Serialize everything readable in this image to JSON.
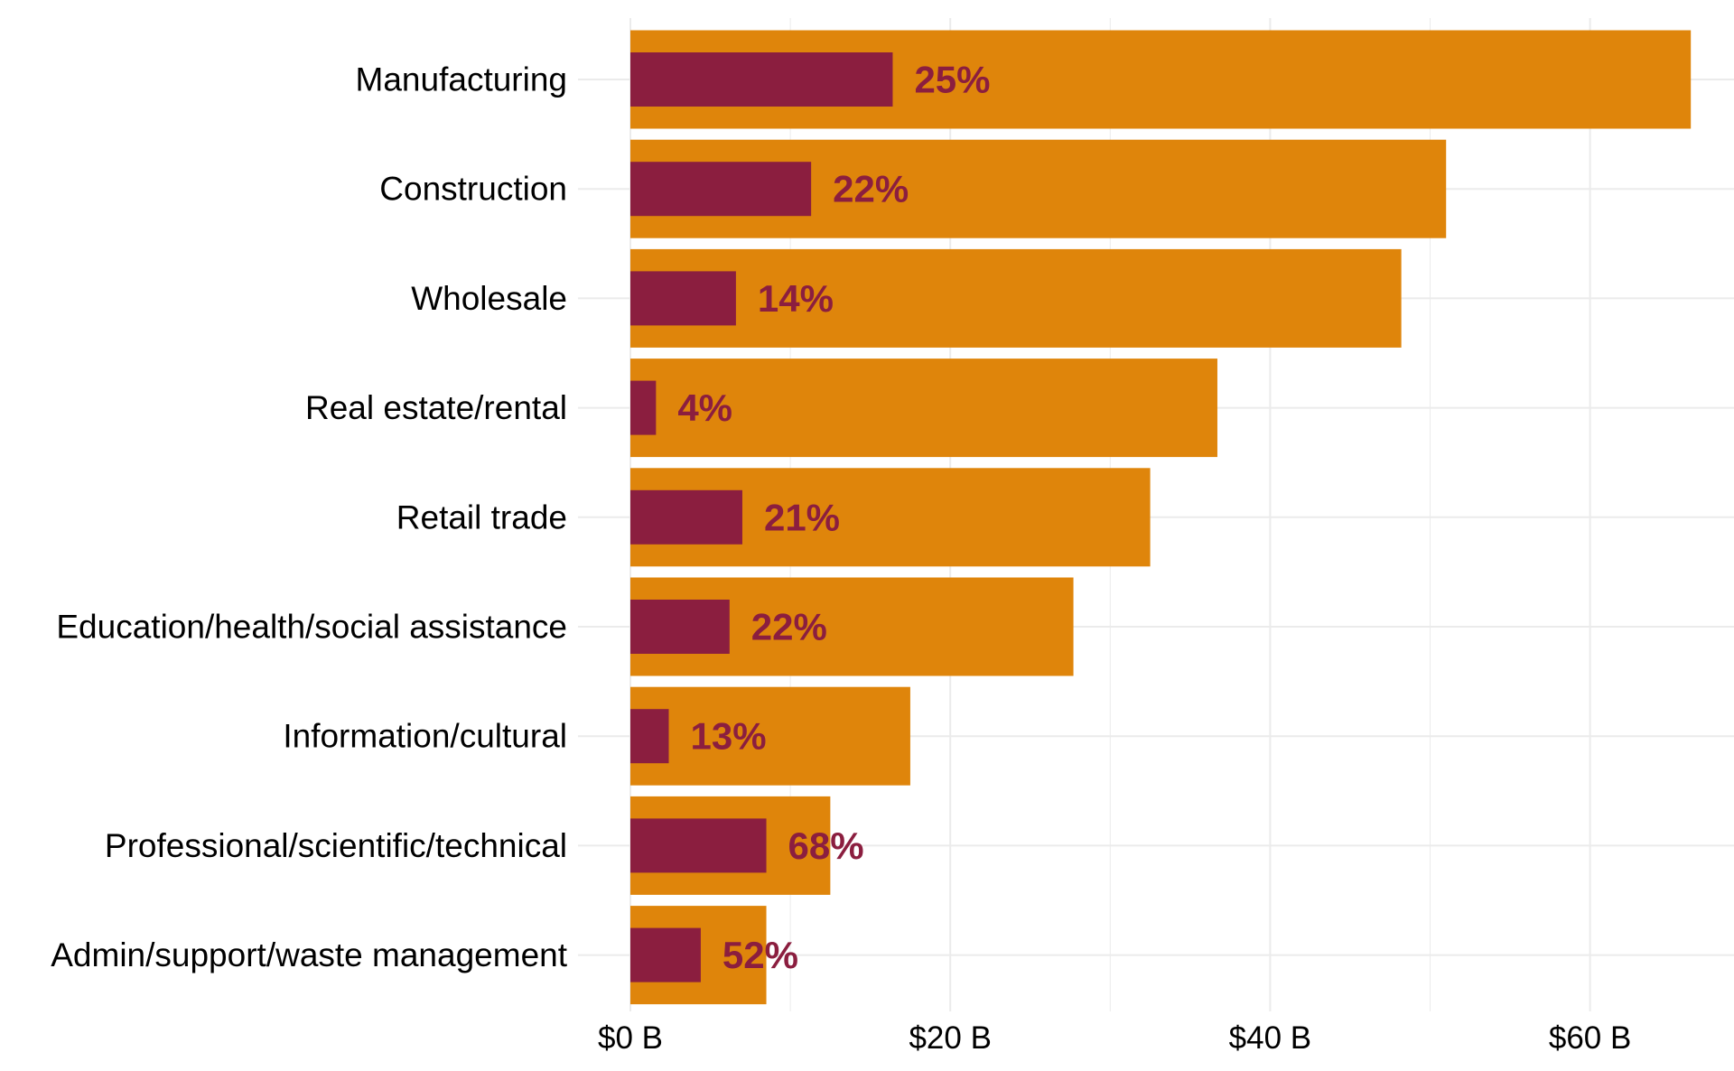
{
  "chart_data": {
    "type": "bar",
    "orientation": "horizontal",
    "title": "",
    "xlabel": "",
    "ylabel": "",
    "categories": [
      "Manufacturing",
      "Construction",
      "Wholesale",
      "Real estate/rental",
      "Retail trade",
      "Education/health/social assistance",
      "Information/cultural",
      "Professional/scientific/technical",
      "Admin/support/waste management"
    ],
    "series": [
      {
        "values": [
          66.3,
          51.0,
          48.2,
          36.7,
          32.5,
          27.7,
          17.5,
          12.5,
          8.5
        ]
      },
      {
        "values": [
          16.4,
          11.3,
          6.6,
          1.6,
          7.0,
          6.2,
          2.4,
          8.5,
          4.4
        ]
      }
    ],
    "data_labels": [
      "25%",
      "22%",
      "14%",
      "4%",
      "21%",
      "22%",
      "13%",
      "68%",
      "52%"
    ],
    "xlim": [
      0,
      69
    ],
    "xticks": [
      0,
      20,
      40,
      60
    ],
    "xtick_labels": [
      "$0 B",
      "$20 B",
      "$40 B",
      "$60 B"
    ],
    "grid": true,
    "legend": "none",
    "colors": {
      "total": "#DF850B",
      "portion": "#8B1E3F",
      "label": "#8B1E3F",
      "grid": "#EBEBEB"
    }
  }
}
